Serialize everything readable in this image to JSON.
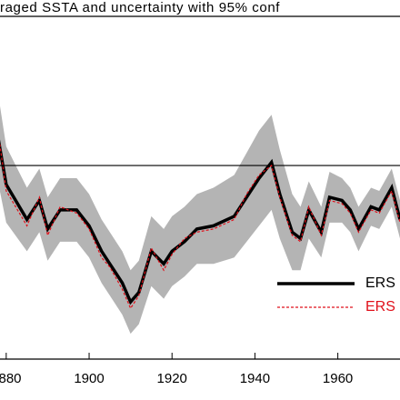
{
  "chart_data": {
    "type": "line",
    "title": "raged SSTA and uncertainty with 95% conf",
    "x": [
      1878,
      1880,
      1885,
      1888,
      1890,
      1893,
      1897,
      1900,
      1903,
      1905,
      1908,
      1910,
      1912,
      1915,
      1918,
      1920,
      1923,
      1926,
      1930,
      1935,
      1938,
      1941,
      1944,
      1946,
      1949,
      1951,
      1953,
      1956,
      1958,
      1961,
      1963,
      1965,
      1968,
      1970,
      1973,
      1975
    ],
    "series": [
      {
        "name": "ERS",
        "color": "#000000",
        "style": "solid",
        "values": [
          0.09,
          -0.06,
          -0.17,
          -0.11,
          -0.2,
          -0.14,
          -0.14,
          -0.19,
          -0.27,
          -0.31,
          -0.37,
          -0.43,
          -0.4,
          -0.27,
          -0.31,
          -0.27,
          -0.24,
          -0.2,
          -0.19,
          -0.16,
          -0.1,
          -0.04,
          0.01,
          -0.09,
          -0.21,
          -0.23,
          -0.14,
          -0.21,
          -0.1,
          -0.11,
          -0.14,
          -0.2,
          -0.13,
          -0.14,
          -0.07,
          -0.17
        ],
        "uncertainty": [
          0.14,
          0.12,
          0.1,
          0.1,
          0.1,
          0.1,
          0.1,
          0.1,
          0.1,
          0.1,
          0.1,
          0.1,
          0.1,
          0.11,
          0.11,
          0.11,
          0.11,
          0.11,
          0.12,
          0.13,
          0.14,
          0.15,
          0.15,
          0.14,
          0.12,
          0.1,
          0.09,
          0.08,
          0.08,
          0.07,
          0.07,
          0.07,
          0.06,
          0.06,
          0.06,
          0.06
        ]
      },
      {
        "name": "ERS",
        "color": "#e0101a",
        "style": "dashed",
        "values": [
          0.11,
          -0.08,
          -0.19,
          -0.1,
          -0.22,
          -0.13,
          -0.15,
          -0.2,
          -0.29,
          -0.32,
          -0.39,
          -0.45,
          -0.41,
          -0.26,
          -0.33,
          -0.28,
          -0.23,
          -0.21,
          -0.2,
          -0.17,
          -0.09,
          -0.03,
          0.0,
          -0.1,
          -0.22,
          -0.24,
          -0.13,
          -0.22,
          -0.11,
          -0.12,
          -0.15,
          -0.21,
          -0.14,
          -0.15,
          -0.08,
          -0.18
        ]
      }
    ],
    "band_color": "#b4b4b4",
    "hline": 0,
    "xlim": [
      1878.5,
      1975
    ],
    "xticks": [
      1880,
      1900,
      1920,
      1940,
      1960
    ],
    "ylim": [
      -0.61,
      0.47
    ]
  }
}
